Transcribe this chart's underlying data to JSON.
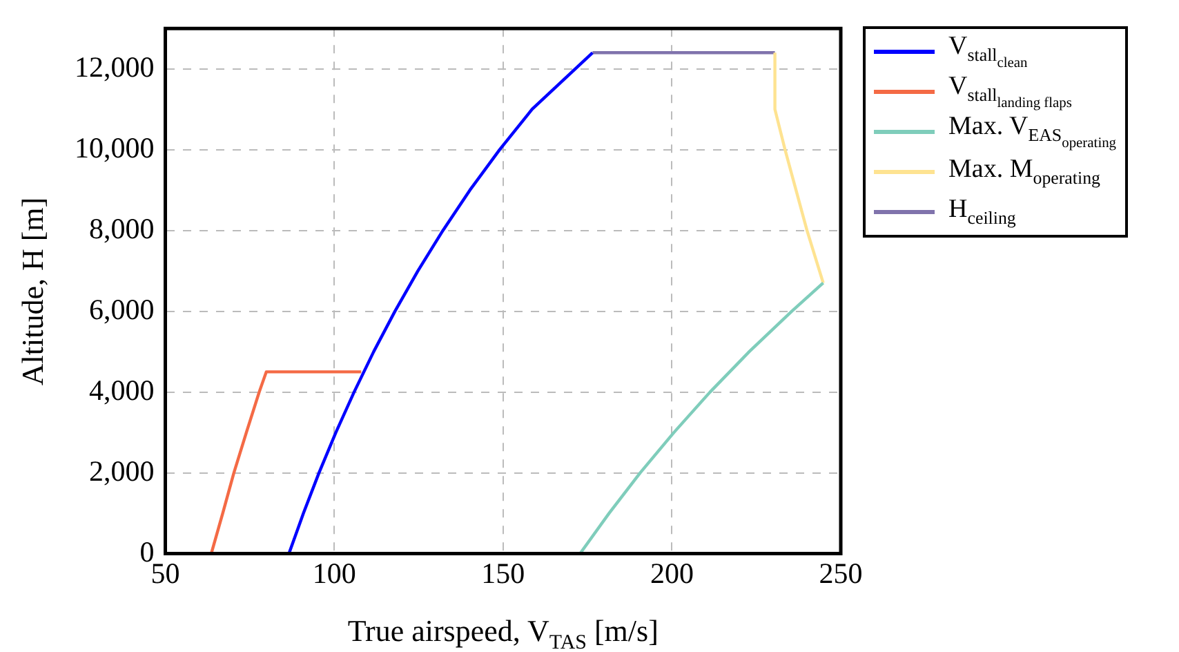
{
  "chart_data": {
    "type": "line",
    "xlabel": "True airspeed, V$_{TAS}$ [m/s]",
    "ylabel": "Altitude, H [m]",
    "xlim": [
      50,
      250
    ],
    "xticks": [
      50,
      100,
      150,
      200,
      250
    ],
    "ylim": [
      0,
      13000
    ],
    "yticks": [
      {
        "value": 0,
        "label": "0"
      },
      {
        "value": 2000,
        "label": "2,000"
      },
      {
        "value": 4000,
        "label": "4,000"
      },
      {
        "value": 6000,
        "label": "6,000"
      },
      {
        "value": 8000,
        "label": "8,000"
      },
      {
        "value": 10000,
        "label": "10,000"
      },
      {
        "value": 12000,
        "label": "12,000"
      }
    ],
    "grid": true,
    "legend": "top right",
    "marker": "none",
    "line_style": "solid",
    "series": [
      {
        "name": "V$_{stall}$$_{clean}$",
        "color": "#0000ff",
        "x": [
          86.6,
          90.9,
          95.5,
          100.5,
          105.9,
          111.7,
          118.0,
          124.8,
          132.2,
          140.2,
          149.0,
          158.6,
          176.5
        ],
        "values": [
          0,
          1000,
          2000,
          3000,
          4000,
          5000,
          6000,
          7000,
          8000,
          9000,
          10000,
          11000,
          12400
        ]
      },
      {
        "name": "V$_{stall}$$_{landing flaps}$",
        "color": "#f46a45",
        "x": [
          63.6,
          67.0,
          70.3,
          74.0,
          77.8,
          79.9,
          108
        ],
        "values": [
          0,
          1000,
          2000,
          3000,
          4000,
          4500,
          4500
        ]
      },
      {
        "name": "Max. V$_{EAS}$$_{operating}$",
        "color": "#7fcdbb",
        "x": [
          172.8,
          181.4,
          190.6,
          200.6,
          211.3,
          222.9,
          235.5,
          244.8
        ],
        "values": [
          0,
          1000,
          2000,
          3000,
          4000,
          5000,
          6000,
          6700
        ]
      },
      {
        "name": "Max. M$_{operating}$",
        "color": "#fee391",
        "x": [
          244.8,
          240,
          233.5,
          230.5,
          230.5
        ],
        "values": [
          6700,
          8000,
          10000,
          11000,
          12400
        ]
      },
      {
        "name": "H$_{ceiling}$",
        "color": "#8073ac",
        "x": [
          176.5,
          230.5
        ],
        "values": [
          12400,
          12400
        ]
      }
    ]
  }
}
